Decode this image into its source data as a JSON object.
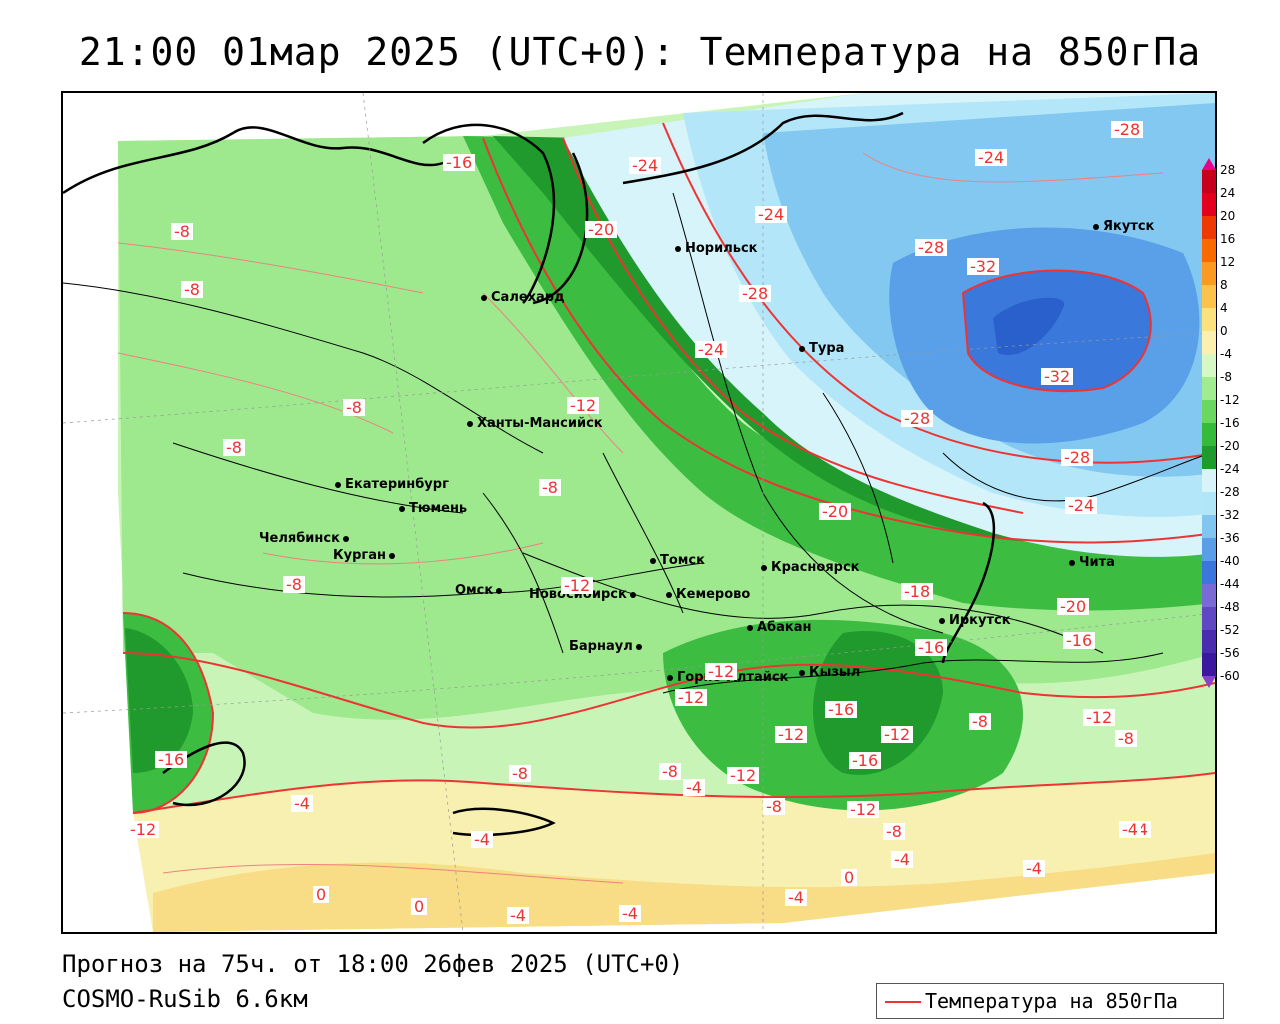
{
  "title": "21:00 01мар 2025 (UTC+0): Температура на 850гПа",
  "forecast_text": "Прогноз на 75ч. от 18:00 26фев 2025 (UTC+0)",
  "model_text": "COSMO-RuSib 6.6км",
  "legend_label": "Температура на 850гПа",
  "colorbar": {
    "ticks": [
      "28",
      "24",
      "20",
      "16",
      "12",
      "8",
      "4",
      "0",
      "-4",
      "-8",
      "-12",
      "-16",
      "-20",
      "-24",
      "-28",
      "-32",
      "-36",
      "-40",
      "-44",
      "-48",
      "-52",
      "-56",
      "-60"
    ],
    "colors": [
      "#e8008a",
      "#c4001c",
      "#e2001c",
      "#ee3a00",
      "#f86a00",
      "#fa9a20",
      "#fbc34a",
      "#fbe27c",
      "#fbf0b0",
      "#d5f8c4",
      "#a0ec90",
      "#6ad860",
      "#34bb3a",
      "#1f9a2c",
      "#d8f4f8",
      "#b0e6f8",
      "#80c6f0",
      "#5a9ee8",
      "#3a76dc",
      "#7a6ad8",
      "#6048c4",
      "#4a2cb0",
      "#3a18a0",
      "#8a40c8"
    ]
  },
  "cities": [
    {
      "name": "Салехард"
    },
    {
      "name": "Норильск"
    },
    {
      "name": "Якутск"
    },
    {
      "name": "Тура"
    },
    {
      "name": "Ханты-Мансийск"
    },
    {
      "name": "Екатеринбург"
    },
    {
      "name": "Тюмень"
    },
    {
      "name": "Челябинск"
    },
    {
      "name": "Курган"
    },
    {
      "name": "Омск"
    },
    {
      "name": "Новосибирск"
    },
    {
      "name": "Томск"
    },
    {
      "name": "Кемерово"
    },
    {
      "name": "Красноярск"
    },
    {
      "name": "Абакан"
    },
    {
      "name": "Барнаул"
    },
    {
      "name": "Горно-Алтайск"
    },
    {
      "name": "Кызыл"
    },
    {
      "name": "Иркутск"
    },
    {
      "name": "Чита"
    }
  ],
  "contour_labels": [
    "-16",
    "-24",
    "-28",
    "-24",
    "-20",
    "-24",
    "-8",
    "-8",
    "-28",
    "-32",
    "-24",
    "-28",
    "-32",
    "-12",
    "-28",
    "-28",
    "-8",
    "-8",
    "-24",
    "-20",
    "-8",
    "-8",
    "-12",
    "-18",
    "-16",
    "-20",
    "-16",
    "-12",
    "-12",
    "-16",
    "-12",
    "-8",
    "-12",
    "-12",
    "-16",
    "-12",
    "-8",
    "-8",
    "-12",
    "-8",
    "-4",
    "-8",
    "-4",
    "-16",
    "-12",
    "-4",
    "-8",
    "-4",
    "-4",
    "0",
    "0",
    "-4",
    "-4",
    "-4",
    "-4",
    "0",
    "-4"
  ]
}
